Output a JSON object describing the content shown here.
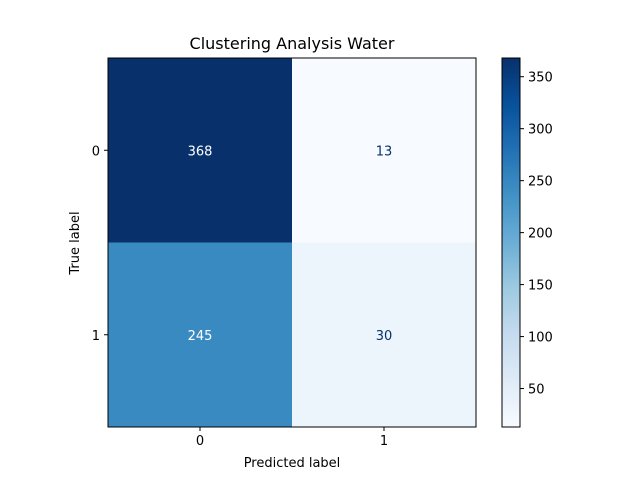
{
  "chart_data": {
    "type": "heatmap",
    "title": "Clustering Analysis Water",
    "xlabel": "Predicted label",
    "ylabel": "True label",
    "x_categories": [
      "0",
      "1"
    ],
    "y_categories": [
      "0",
      "1"
    ],
    "matrix": [
      [
        368,
        13
      ],
      [
        245,
        30
      ]
    ],
    "colormap": "Blues",
    "colorbar": {
      "min": 13,
      "max": 368,
      "ticks": [
        50,
        100,
        150,
        200,
        250,
        300,
        350
      ]
    },
    "grid": false
  }
}
